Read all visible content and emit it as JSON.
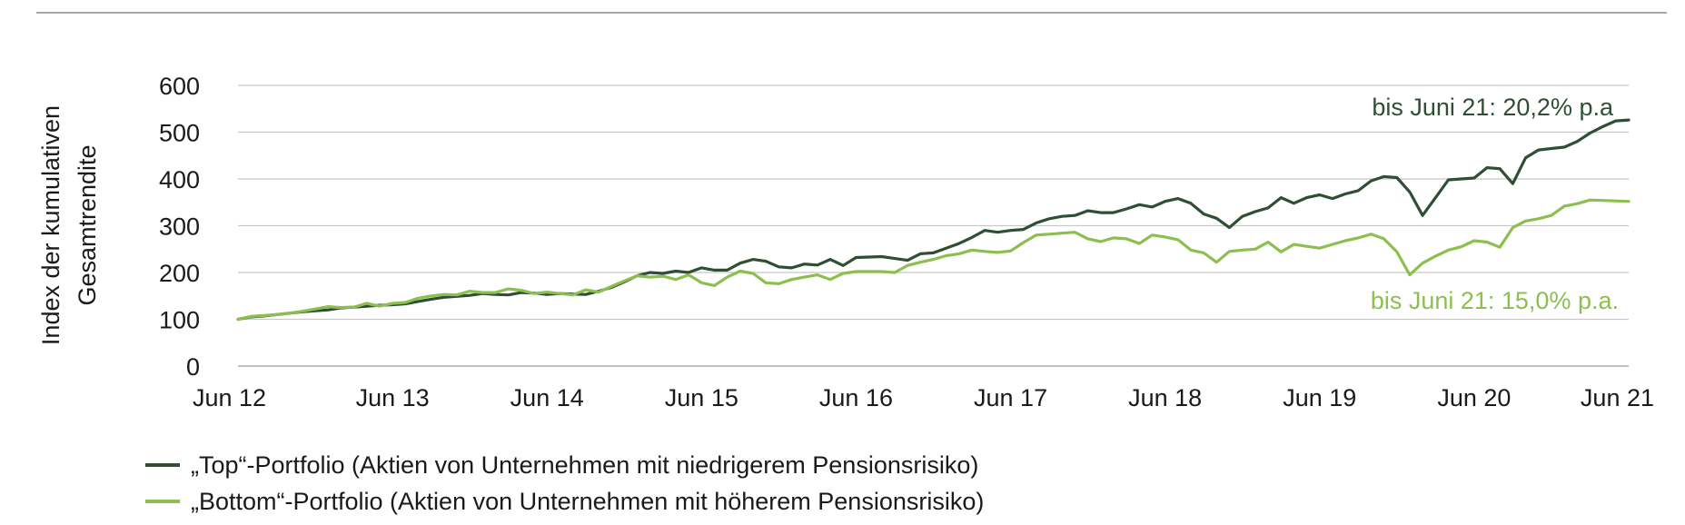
{
  "chart_data": {
    "type": "line",
    "title": "",
    "ylabel_lines": [
      "Index der kumulativen",
      "Gesamtrendite"
    ],
    "xlabel": "",
    "ylim": [
      0,
      600
    ],
    "yticks": [
      "0",
      "100",
      "200",
      "300",
      "400",
      "500",
      "600"
    ],
    "xlim": [
      2012.417,
      2021.417
    ],
    "xticks": [
      {
        "x": 2012.417,
        "label": "Jun 12"
      },
      {
        "x": 2013.417,
        "label": "Jun 13"
      },
      {
        "x": 2014.417,
        "label": "Jun 14"
      },
      {
        "x": 2015.417,
        "label": "Jun 15"
      },
      {
        "x": 2016.417,
        "label": "Jun 16"
      },
      {
        "x": 2017.417,
        "label": "Jun 17"
      },
      {
        "x": 2018.417,
        "label": "Jun 18"
      },
      {
        "x": 2019.417,
        "label": "Jun 19"
      },
      {
        "x": 2020.417,
        "label": "Jun 20"
      },
      {
        "x": 2021.417,
        "label": "Jun 21"
      }
    ],
    "grid": true,
    "legend_position": "bottom",
    "series": [
      {
        "name": "„Top“-Portfolio (Aktien von Unternehmen mit niedrigerem Pensionsrisiko)",
        "color": "#2f4f35",
        "annotation": "bis Juni 21: 20,2% p.a",
        "x": [
          2012.417,
          2012.5,
          2012.583,
          2012.667,
          2012.75,
          2012.833,
          2012.917,
          2013.0,
          2013.083,
          2013.167,
          2013.25,
          2013.333,
          2013.417,
          2013.5,
          2013.583,
          2013.667,
          2013.75,
          2013.833,
          2013.917,
          2014.0,
          2014.083,
          2014.167,
          2014.25,
          2014.333,
          2014.417,
          2014.5,
          2014.583,
          2014.667,
          2014.75,
          2014.833,
          2014.917,
          2015.0,
          2015.083,
          2015.167,
          2015.25,
          2015.333,
          2015.417,
          2015.5,
          2015.583,
          2015.667,
          2015.75,
          2015.833,
          2015.917,
          2016.0,
          2016.083,
          2016.167,
          2016.25,
          2016.333,
          2016.417,
          2016.5,
          2016.583,
          2016.667,
          2016.75,
          2016.833,
          2016.917,
          2017.0,
          2017.083,
          2017.167,
          2017.25,
          2017.333,
          2017.417,
          2017.5,
          2017.583,
          2017.667,
          2017.75,
          2017.833,
          2017.917,
          2018.0,
          2018.083,
          2018.167,
          2018.25,
          2018.333,
          2018.417,
          2018.5,
          2018.583,
          2018.667,
          2018.75,
          2018.833,
          2018.917,
          2019.0,
          2019.083,
          2019.167,
          2019.25,
          2019.333,
          2019.417,
          2019.5,
          2019.583,
          2019.667,
          2019.75,
          2019.833,
          2019.917,
          2020.0,
          2020.083,
          2020.167,
          2020.25,
          2020.333,
          2020.417,
          2020.5,
          2020.583,
          2020.667,
          2020.75,
          2020.833,
          2020.917,
          2021.0,
          2021.083,
          2021.167,
          2021.25,
          2021.333,
          2021.417
        ],
        "y": [
          100,
          105,
          107,
          110,
          113,
          116,
          118,
          120,
          124,
          126,
          128,
          130,
          131,
          133,
          138,
          143,
          147,
          149,
          151,
          155,
          153,
          152,
          157,
          156,
          153,
          155,
          154,
          153,
          160,
          168,
          180,
          193,
          200,
          198,
          203,
          200,
          210,
          205,
          205,
          220,
          228,
          224,
          212,
          210,
          218,
          216,
          228,
          215,
          232,
          233,
          234,
          230,
          226,
          240,
          242,
          252,
          262,
          275,
          290,
          286,
          290,
          292,
          306,
          315,
          320,
          322,
          332,
          328,
          328,
          336,
          345,
          340,
          352,
          358,
          348,
          325,
          316,
          296,
          320,
          330,
          338,
          360,
          348,
          360,
          366,
          358,
          368,
          375,
          396,
          405,
          403,
          372,
          322,
          360,
          398,
          400,
          402,
          424,
          422,
          390,
          445,
          462,
          465,
          468,
          480,
          498,
          512,
          524,
          526
        ]
      },
      {
        "name": "„Bottom“-Portfolio (Aktien von Unternehmen mit höherem Pensionsrisiko)",
        "color": "#8cbf4f",
        "annotation": "bis Juni 21: 15,0% p.a.",
        "x": [
          2012.417,
          2012.5,
          2012.583,
          2012.667,
          2012.75,
          2012.833,
          2012.917,
          2013.0,
          2013.083,
          2013.167,
          2013.25,
          2013.333,
          2013.417,
          2013.5,
          2013.583,
          2013.667,
          2013.75,
          2013.833,
          2013.917,
          2014.0,
          2014.083,
          2014.167,
          2014.25,
          2014.333,
          2014.417,
          2014.5,
          2014.583,
          2014.667,
          2014.75,
          2014.833,
          2014.917,
          2015.0,
          2015.083,
          2015.167,
          2015.25,
          2015.333,
          2015.417,
          2015.5,
          2015.583,
          2015.667,
          2015.75,
          2015.833,
          2015.917,
          2016.0,
          2016.083,
          2016.167,
          2016.25,
          2016.333,
          2016.417,
          2016.5,
          2016.583,
          2016.667,
          2016.75,
          2016.833,
          2016.917,
          2017.0,
          2017.083,
          2017.167,
          2017.25,
          2017.333,
          2017.417,
          2017.5,
          2017.583,
          2017.667,
          2017.75,
          2017.833,
          2017.917,
          2018.0,
          2018.083,
          2018.167,
          2018.25,
          2018.333,
          2018.417,
          2018.5,
          2018.583,
          2018.667,
          2018.75,
          2018.833,
          2018.917,
          2019.0,
          2019.083,
          2019.167,
          2019.25,
          2019.333,
          2019.417,
          2019.5,
          2019.583,
          2019.667,
          2019.75,
          2019.833,
          2019.917,
          2020.0,
          2020.083,
          2020.167,
          2020.25,
          2020.333,
          2020.417,
          2020.5,
          2020.583,
          2020.667,
          2020.75,
          2020.833,
          2020.917,
          2021.0,
          2021.083,
          2021.167,
          2021.25,
          2021.333,
          2021.417
        ],
        "y": [
          100,
          106,
          108,
          110,
          113,
          117,
          122,
          127,
          125,
          126,
          134,
          128,
          134,
          136,
          145,
          150,
          153,
          152,
          160,
          157,
          157,
          165,
          162,
          155,
          158,
          155,
          152,
          163,
          158,
          170,
          182,
          193,
          190,
          192,
          185,
          195,
          178,
          172,
          190,
          203,
          198,
          178,
          176,
          185,
          190,
          195,
          185,
          198,
          202,
          202,
          202,
          200,
          215,
          222,
          228,
          236,
          240,
          248,
          245,
          243,
          246,
          264,
          280,
          282,
          284,
          286,
          272,
          266,
          274,
          272,
          262,
          280,
          276,
          270,
          248,
          242,
          222,
          245,
          248,
          250,
          265,
          244,
          260,
          256,
          252,
          260,
          268,
          274,
          282,
          272,
          244,
          195,
          220,
          235,
          248,
          255,
          268,
          265,
          254,
          296,
          310,
          315,
          322,
          342,
          347,
          355,
          354,
          353,
          352
        ]
      }
    ]
  }
}
